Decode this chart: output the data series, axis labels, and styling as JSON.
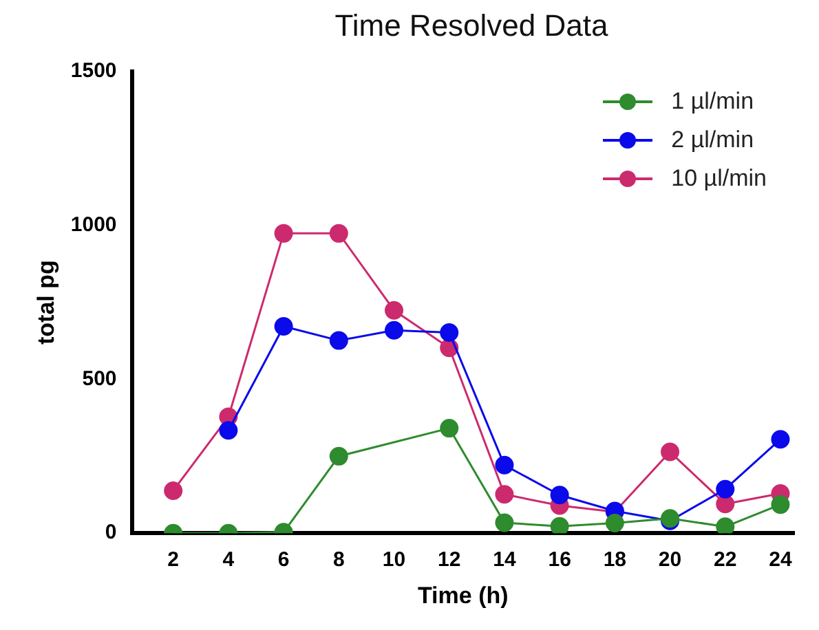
{
  "chart_data": {
    "type": "line",
    "title": "Time Resolved Data",
    "xlabel": "Time (h)",
    "ylabel": "total pg",
    "x": [
      2,
      4,
      6,
      8,
      10,
      12,
      14,
      16,
      18,
      20,
      22,
      24
    ],
    "xlim": [
      0.5,
      24.5
    ],
    "xticks": [
      2,
      4,
      6,
      8,
      10,
      12,
      14,
      16,
      18,
      20,
      22,
      24
    ],
    "series": [
      {
        "name": "1 µl/min",
        "color": "#2e8b2e",
        "values": [
          0,
          0,
          3,
          250,
          null,
          341,
          34,
          22,
          33,
          48,
          21,
          93
        ]
      },
      {
        "name": "2 µl/min",
        "color": "#0a0aeb",
        "values": [
          null,
          334,
          672,
          626,
          659,
          652,
          221,
          124,
          72,
          40,
          143,
          305
        ]
      },
      {
        "name": "10 µl/min",
        "color": "#cc2a6e",
        "values": [
          138,
          378,
          974,
          974,
          724,
          602,
          126,
          90,
          69,
          264,
          95,
          129
        ]
      }
    ],
    "ylim": [
      0,
      1500
    ],
    "yticks": [
      0,
      500,
      1000,
      1500
    ],
    "grid": false,
    "legend": "top right",
    "marker": "circle",
    "line_style": "solid"
  }
}
